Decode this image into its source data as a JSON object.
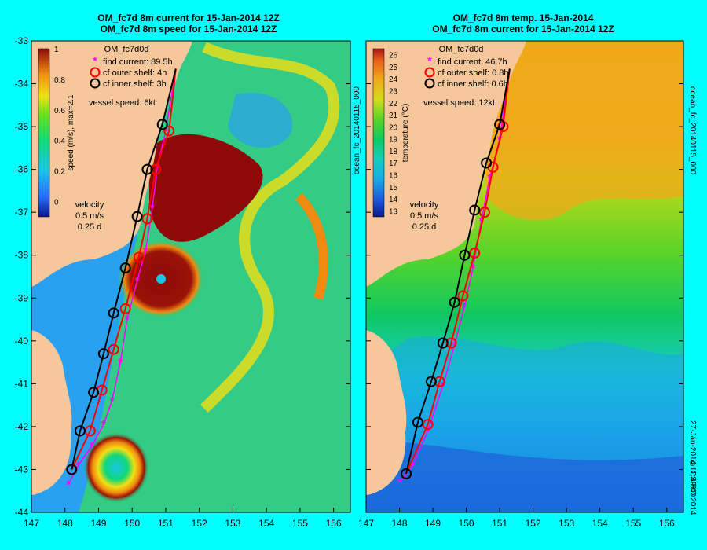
{
  "left": {
    "title1": "OM_fc7d 8m current for 15-Jan-2014 12Z",
    "title2": "OM_fc7d 8m speed for 15-Jan-2014 12Z",
    "model": "OM_fc7d0d",
    "colorbar_label": "speed (m/s),  max=2.1",
    "colorbar_ticks": [
      "1",
      "0.8",
      "0.6",
      "0.4",
      "0.2",
      "0"
    ],
    "legend": [
      {
        "label": "find current: 89.5h",
        "color": "#ff00ff",
        "marker": "star"
      },
      {
        "label": "cf outer shelf: 4h",
        "color": "#ff0000",
        "marker": "circle"
      },
      {
        "label": "cf inner shelf: 3h",
        "color": "#000000",
        "marker": "circle"
      }
    ],
    "vessel_speed": "vessel speed: 6kt",
    "velocity_key": [
      "velocity",
      "0.5 m/s",
      "0.25 d"
    ]
  },
  "right": {
    "title1": "OM_fc7d 8m temp. 15-Jan-2014",
    "title2": "OM_fc7d 8m current for 15-Jan-2014 12Z",
    "model": "OM_fc7d0d",
    "colorbar_label": "temperature (°C)",
    "colorbar_ticks": [
      "26",
      "25",
      "24",
      "23",
      "22",
      "21",
      "20",
      "19",
      "18",
      "17",
      "16",
      "15",
      "14",
      "13"
    ],
    "legend": [
      {
        "label": "find current: 46.7h",
        "color": "#ff00ff",
        "marker": "star"
      },
      {
        "label": "cf outer shelf: 0.8h",
        "color": "#ff0000",
        "marker": "circle"
      },
      {
        "label": "cf inner shelf: 0.6h",
        "color": "#000000",
        "marker": "circle"
      }
    ],
    "vessel_speed": "vessel speed: 12kt",
    "velocity_key": [
      "velocity",
      "0.5 m/s",
      "0.25 d"
    ]
  },
  "side_texts": {
    "left_file": "ocean_fc_20140115_000",
    "right_file": "ocean_fc_20140115_000",
    "right_date": "27-Jan-2014 11:49:00",
    "copyright": "© CSIRO 2014"
  },
  "chart_data": [
    {
      "type": "heatmap",
      "title": "OM_fc7d 8m current for 15-Jan-2014 12Z / OM_fc7d 8m speed for 15-Jan-2014 12Z",
      "xlim": [
        147,
        156.5
      ],
      "ylim": [
        -44,
        -33
      ],
      "x_ticks": [
        147,
        148,
        149,
        150,
        151,
        152,
        153,
        154,
        155,
        156
      ],
      "y_ticks": [
        -33,
        -34,
        -35,
        -36,
        -37,
        -38,
        -39,
        -40,
        -41,
        -42,
        -43,
        -44
      ],
      "colorbar_range": [
        -0.1,
        1.0
      ],
      "series": [
        {
          "name": "find current: 89.5h",
          "points": [
            [
              148.1,
              -43.35
            ],
            [
              148.4,
              -42.9
            ],
            [
              148.8,
              -42.45
            ],
            [
              149.15,
              -41.95
            ],
            [
              149.4,
              -41.4
            ],
            [
              149.65,
              -40.5
            ],
            [
              149.85,
              -39.5
            ],
            [
              150.15,
              -38.6
            ],
            [
              150.4,
              -37.9
            ],
            [
              150.6,
              -36.9
            ],
            [
              150.75,
              -35.95
            ],
            [
              151.0,
              -35.1
            ],
            [
              151.3,
              -33.65
            ]
          ]
        },
        {
          "name": "cf outer shelf: 4h",
          "points": [
            [
              148.2,
              -43.0
            ],
            [
              148.75,
              -42.1
            ],
            [
              149.1,
              -41.15
            ],
            [
              149.45,
              -40.2
            ],
            [
              149.8,
              -39.25
            ],
            [
              150.2,
              -38.05
            ],
            [
              150.45,
              -37.15
            ],
            [
              150.7,
              -36.0
            ],
            [
              151.1,
              -35.1
            ],
            [
              151.3,
              -33.65
            ]
          ]
        },
        {
          "name": "cf inner shelf: 3h",
          "points": [
            [
              148.2,
              -43.0
            ],
            [
              148.45,
              -42.1
            ],
            [
              148.85,
              -41.2
            ],
            [
              149.15,
              -40.3
            ],
            [
              149.45,
              -39.35
            ],
            [
              149.8,
              -38.3
            ],
            [
              150.15,
              -37.1
            ],
            [
              150.45,
              -36.0
            ],
            [
              150.9,
              -34.95
            ],
            [
              151.3,
              -33.65
            ]
          ]
        }
      ]
    },
    {
      "type": "heatmap",
      "title": "OM_fc7d 8m temp. 15-Jan-2014 / OM_fc7d 8m current for 15-Jan-2014 12Z",
      "xlim": [
        147,
        156.5
      ],
      "ylim": [
        -44,
        -33
      ],
      "x_ticks": [
        147,
        148,
        149,
        150,
        151,
        152,
        153,
        154,
        155,
        156
      ],
      "y_ticks": [
        -33,
        -34,
        -35,
        -36,
        -37,
        -38,
        -39,
        -40,
        -41,
        -42,
        -43,
        -44
      ],
      "colorbar_range": [
        12.5,
        26.5
      ],
      "series": [
        {
          "name": "find current: 46.7h",
          "points": [
            [
              148.0,
              -43.3
            ],
            [
              148.4,
              -42.9
            ],
            [
              148.85,
              -42.1
            ],
            [
              149.3,
              -41.05
            ],
            [
              149.65,
              -40.1
            ],
            [
              149.95,
              -39.2
            ],
            [
              150.2,
              -38.3
            ],
            [
              150.45,
              -37.2
            ],
            [
              150.7,
              -36.2
            ],
            [
              151.0,
              -35.3
            ],
            [
              151.3,
              -33.65
            ]
          ]
        },
        {
          "name": "cf outer shelf: 0.8h",
          "points": [
            [
              148.2,
              -43.1
            ],
            [
              148.85,
              -41.95
            ],
            [
              149.2,
              -40.95
            ],
            [
              149.55,
              -40.05
            ],
            [
              149.9,
              -38.95
            ],
            [
              150.25,
              -37.95
            ],
            [
              150.55,
              -37.0
            ],
            [
              150.8,
              -35.95
            ],
            [
              151.1,
              -35.0
            ],
            [
              151.3,
              -33.65
            ]
          ]
        },
        {
          "name": "cf inner shelf: 0.6h",
          "points": [
            [
              148.2,
              -43.1
            ],
            [
              148.55,
              -41.9
            ],
            [
              148.95,
              -40.95
            ],
            [
              149.3,
              -40.05
            ],
            [
              149.65,
              -39.1
            ],
            [
              149.95,
              -38.0
            ],
            [
              150.25,
              -36.95
            ],
            [
              150.6,
              -35.85
            ],
            [
              151.0,
              -34.95
            ],
            [
              151.3,
              -33.65
            ]
          ]
        }
      ]
    }
  ]
}
